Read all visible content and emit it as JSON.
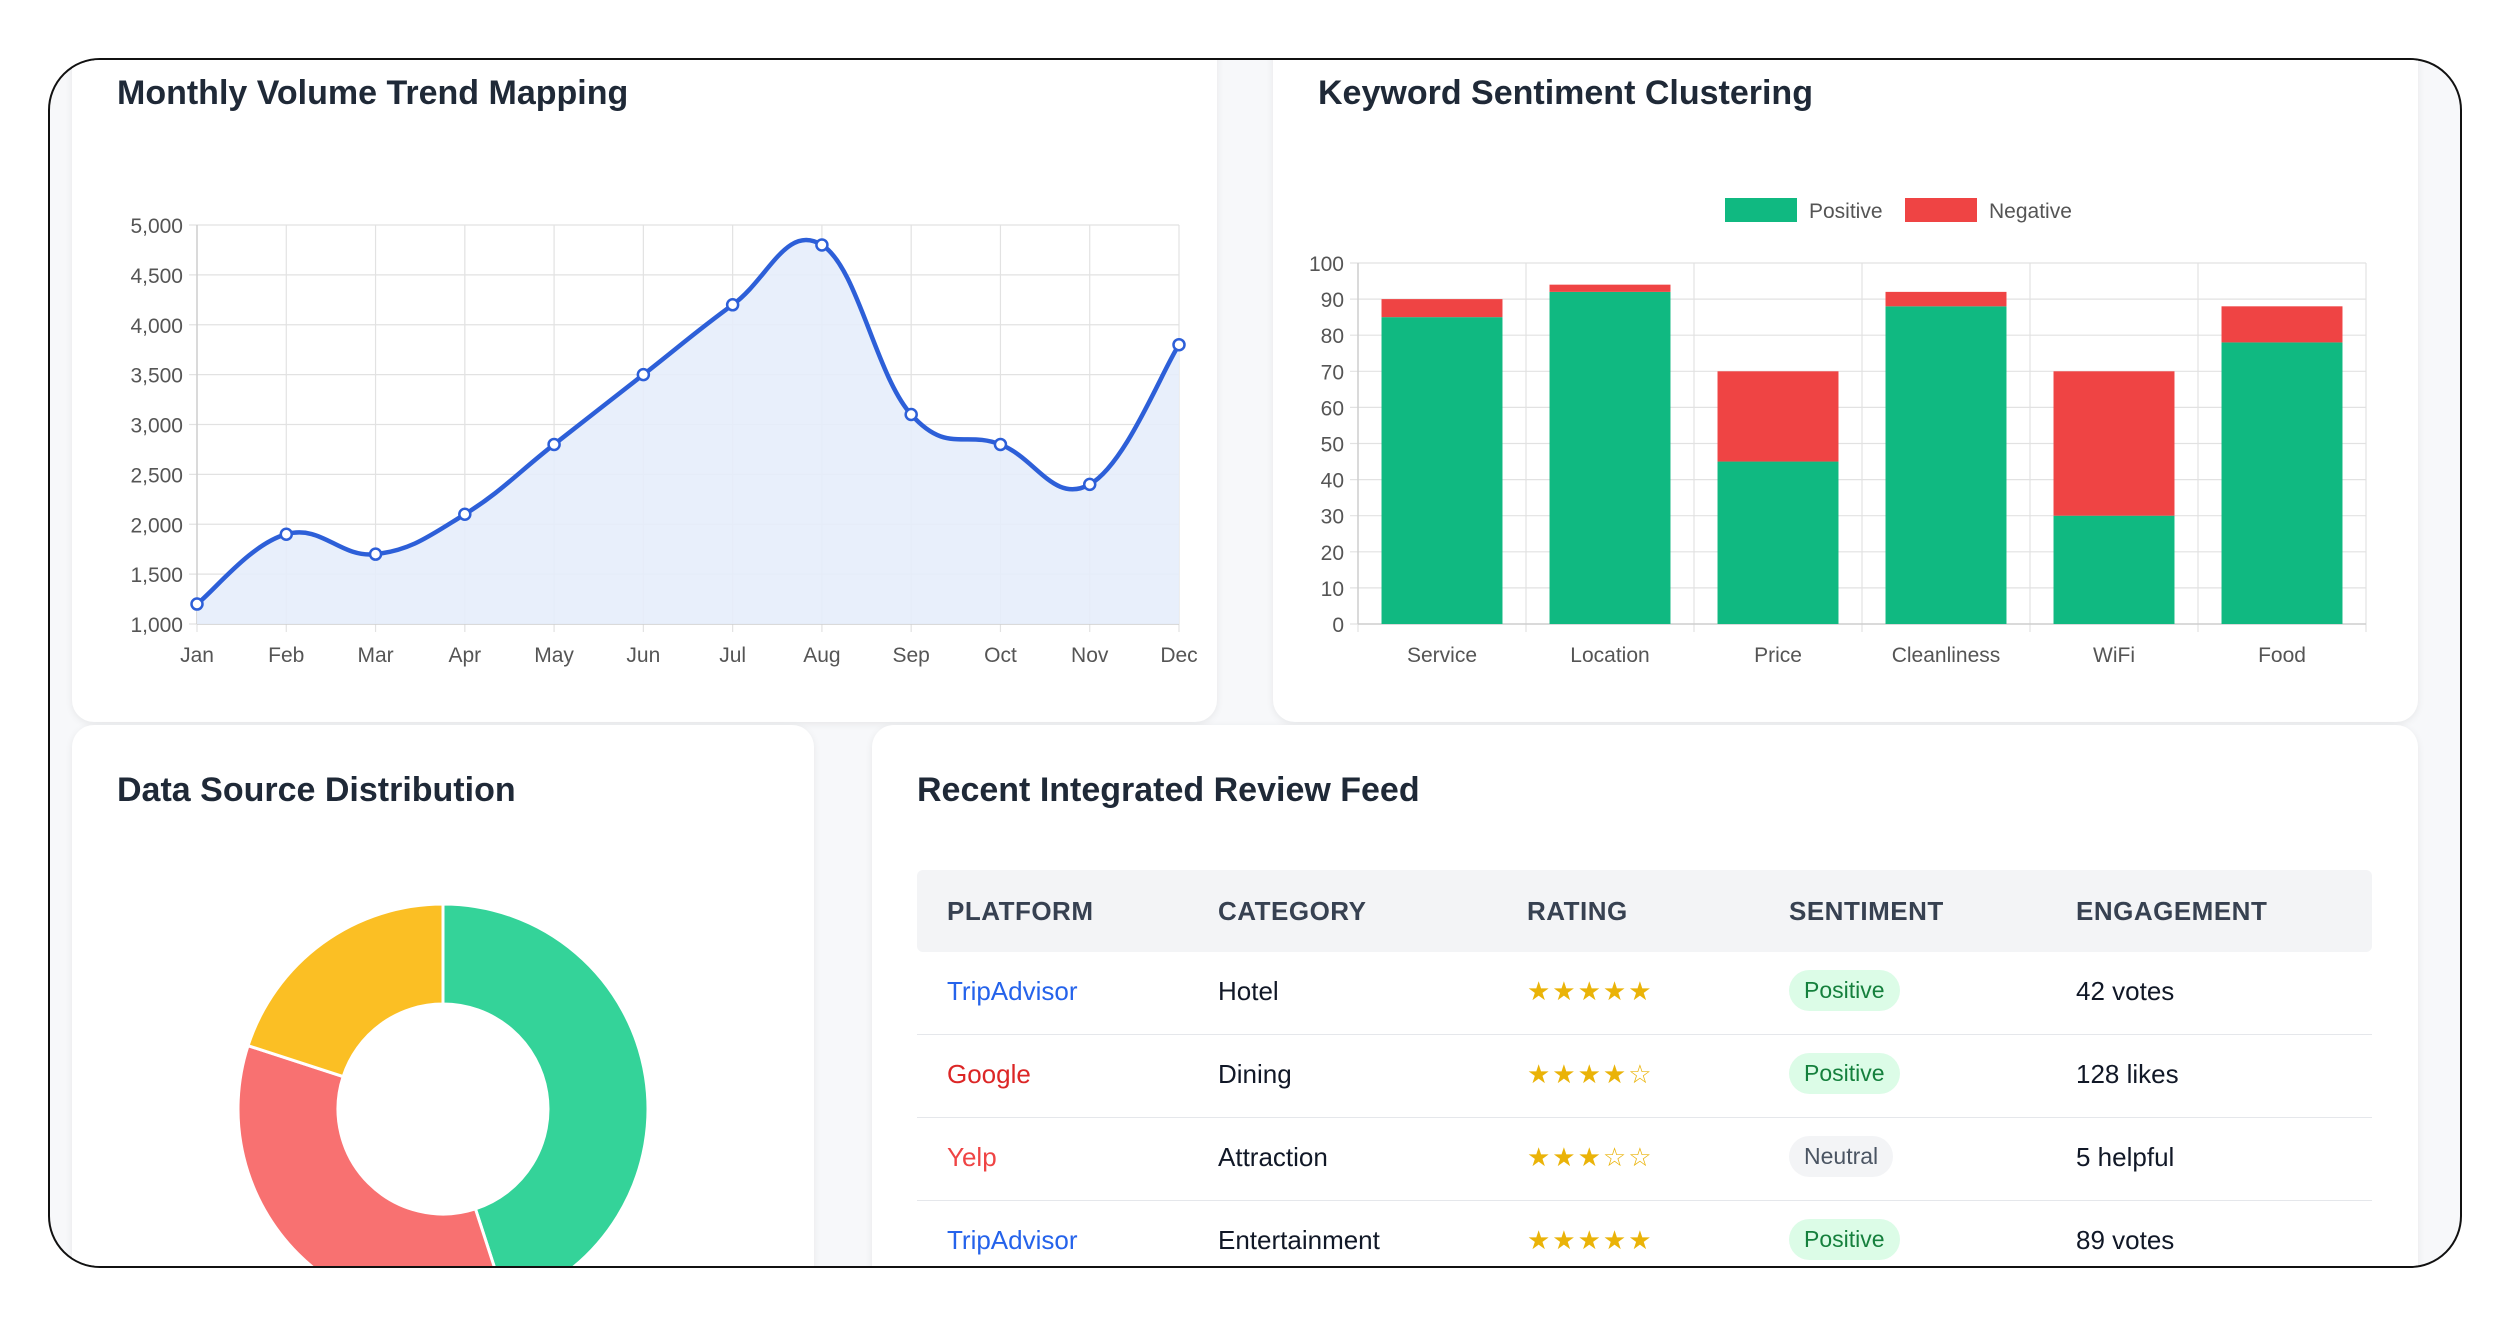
{
  "colors": {
    "line": "#2d5fd8",
    "line_fill": "#e6edfb",
    "positive_bar": "#10b981",
    "negative_bar": "#ef4444",
    "donut_green": "#34d399",
    "donut_red": "#f87171",
    "donut_yellow": "#fbbf24",
    "tripadvisor": "#2563eb",
    "google": "#dc2626",
    "yelp": "#ef4444",
    "badge_positive_bg": "#dcfce7",
    "badge_positive_text": "#15803d",
    "badge_neutral_bg": "#f3f4f6",
    "badge_neutral_text": "#4b5563"
  },
  "trend": {
    "title": "Monthly Volume Trend Mapping",
    "chart_data": {
      "type": "line",
      "title": "",
      "x": [
        "Jan",
        "Feb",
        "Mar",
        "Apr",
        "May",
        "Jun",
        "Jul",
        "Aug",
        "Sep",
        "Oct",
        "Nov",
        "Dec"
      ],
      "values": [
        1200,
        1900,
        1700,
        2100,
        2800,
        3500,
        4200,
        4800,
        3100,
        2800,
        2400,
        3800
      ],
      "ylim": [
        1000,
        5000
      ],
      "yticks": [
        "1,000",
        "1,500",
        "2,000",
        "2,500",
        "3,000",
        "3,500",
        "4,000",
        "4,500",
        "5,000"
      ],
      "ytick_values": [
        1000,
        1500,
        2000,
        2500,
        3000,
        3500,
        4000,
        4500,
        5000
      ],
      "grid": true,
      "fill": true
    }
  },
  "sentiment": {
    "title": "Keyword Sentiment Clustering",
    "chart_data": {
      "type": "bar",
      "stacked": true,
      "categories": [
        "Service",
        "Location",
        "Price",
        "Cleanliness",
        "WiFi",
        "Food"
      ],
      "series": [
        {
          "name": "Positive",
          "values": [
            85,
            92,
            45,
            88,
            30,
            78
          ]
        },
        {
          "name": "Negative",
          "values": [
            5,
            2,
            25,
            4,
            40,
            10
          ]
        }
      ],
      "ylim": [
        0,
        100
      ],
      "yticks": [
        "0",
        "10",
        "20",
        "30",
        "40",
        "50",
        "60",
        "70",
        "80",
        "90",
        "100"
      ],
      "ytick_values": [
        0,
        10,
        20,
        30,
        40,
        50,
        60,
        70,
        80,
        90,
        100
      ],
      "legend": "top-center",
      "grid": true
    }
  },
  "source": {
    "title": "Data Source Distribution",
    "chart_data": {
      "type": "pie",
      "donut": true,
      "values": [
        45,
        35,
        20
      ],
      "colors": [
        "#34d399",
        "#f87171",
        "#fbbf24"
      ]
    }
  },
  "feed": {
    "title": "Recent Integrated Review Feed",
    "headers": [
      "PLATFORM",
      "CATEGORY",
      "RATING",
      "SENTIMENT",
      "ENGAGEMENT"
    ],
    "rows": [
      {
        "platform": "TripAdvisor",
        "platform_color": "#2563eb",
        "category": "Hotel",
        "stars": "★★★★★",
        "rating": 5,
        "sentiment": "Positive",
        "sentiment_type": "positive",
        "engagement": "42 votes"
      },
      {
        "platform": "Google",
        "platform_color": "#dc2626",
        "category": "Dining",
        "stars": "★★★★☆",
        "rating": 4.5,
        "sentiment": "Positive",
        "sentiment_type": "positive",
        "engagement": "128 likes"
      },
      {
        "platform": "Yelp",
        "platform_color": "#ef4444",
        "category": "Attraction",
        "stars": "★★★☆☆",
        "rating": 3.5,
        "sentiment": "Neutral",
        "sentiment_type": "neutral",
        "engagement": "5 helpful"
      },
      {
        "platform": "TripAdvisor",
        "platform_color": "#2563eb",
        "category": "Entertainment",
        "stars": "★★★★★",
        "rating": 5,
        "sentiment": "Positive",
        "sentiment_type": "positive",
        "engagement": "89 votes"
      }
    ]
  }
}
